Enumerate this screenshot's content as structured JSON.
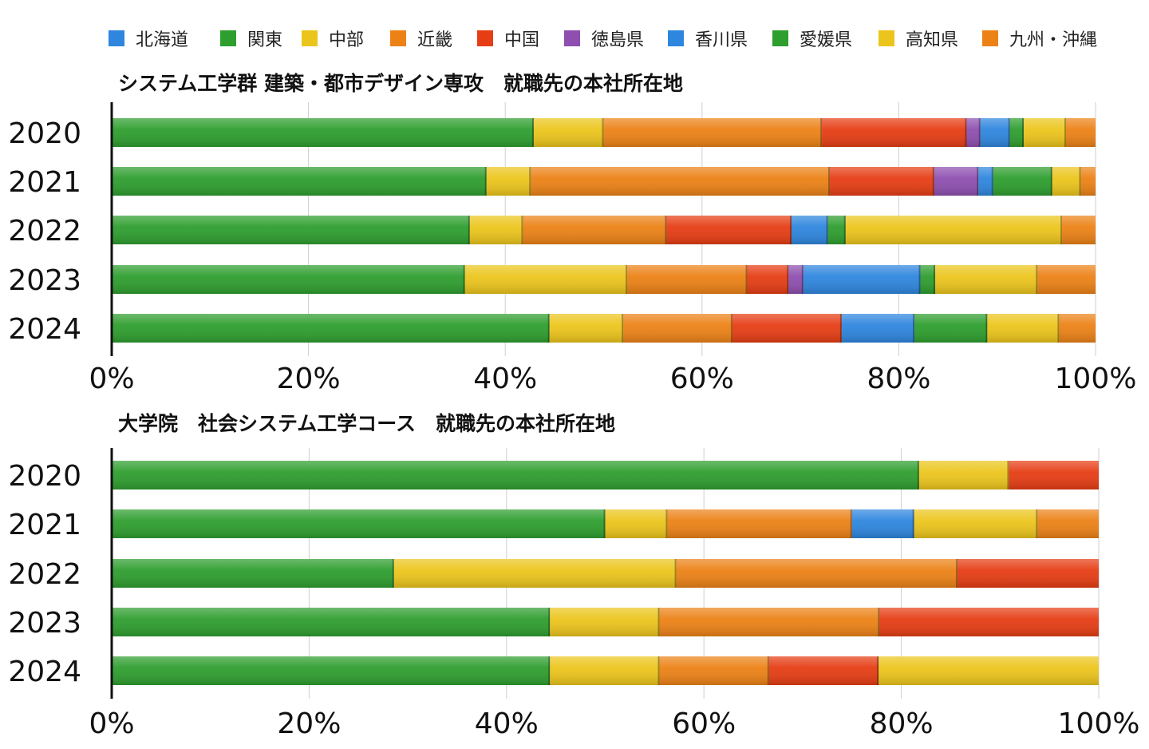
{
  "legend": {
    "items": [
      {
        "label": "北海道",
        "color": "#2e86de"
      },
      {
        "label": "関東",
        "color": "#2e9e2e"
      },
      {
        "label": "中部",
        "color": "#ecc51c"
      },
      {
        "label": "近畿",
        "color": "#ec8216"
      },
      {
        "label": "中国",
        "color": "#e63d14"
      },
      {
        "label": "徳島県",
        "color": "#8e4fb0"
      },
      {
        "label": "香川県",
        "color": "#2e86de"
      },
      {
        "label": "愛媛県",
        "color": "#2e9e2e"
      },
      {
        "label": "高知県",
        "color": "#ecc51c"
      },
      {
        "label": "九州・沖縄",
        "color": "#ec8216"
      }
    ]
  },
  "chart_data": [
    {
      "type": "bar",
      "orientation": "horizontal",
      "stacked": true,
      "title": "システム工学群 建築・都市デザイン専攻　就職先の本社所在地",
      "categories": [
        "2020",
        "2021",
        "2022",
        "2023",
        "2024"
      ],
      "xlim": [
        0,
        100
      ],
      "xticks": [
        "0%",
        "20%",
        "40%",
        "60%",
        "80%",
        "100%"
      ],
      "grid": true,
      "series": [
        {
          "name": "北海道",
          "values": [
            0,
            0,
            0,
            0,
            0
          ]
        },
        {
          "name": "関東",
          "values": [
            42.9,
            38.1,
            36.4,
            35.9,
            44.5
          ]
        },
        {
          "name": "中部",
          "values": [
            7.1,
            4.5,
            5.4,
            16.5,
            7.5
          ]
        },
        {
          "name": "近畿",
          "values": [
            22.2,
            30.4,
            14.6,
            12.2,
            11.1
          ]
        },
        {
          "name": "中国",
          "values": [
            14.7,
            10.6,
            12.7,
            4.2,
            11.1
          ]
        },
        {
          "name": "徳島県",
          "values": [
            1.4,
            4.5,
            0,
            1.5,
            0
          ]
        },
        {
          "name": "香川県",
          "values": [
            3.0,
            1.5,
            3.7,
            11.9,
            7.4
          ]
        },
        {
          "name": "愛媛県",
          "values": [
            1.4,
            6.0,
            1.8,
            1.5,
            7.4
          ]
        },
        {
          "name": "高知県",
          "values": [
            4.3,
            2.9,
            22.0,
            10.4,
            7.3
          ]
        },
        {
          "name": "九州・沖縄",
          "values": [
            3.0,
            1.5,
            3.4,
            5.9,
            3.7
          ]
        }
      ]
    },
    {
      "type": "bar",
      "orientation": "horizontal",
      "stacked": true,
      "title": "大学院　社会システム工学コース　就職先の本社所在地",
      "categories": [
        "2020",
        "2021",
        "2022",
        "2023",
        "2024"
      ],
      "xlim": [
        0,
        100
      ],
      "xticks": [
        "0%",
        "20%",
        "40%",
        "60%",
        "80%",
        "100%"
      ],
      "grid": true,
      "series": [
        {
          "name": "北海道",
          "values": [
            0,
            0,
            0,
            0,
            0
          ]
        },
        {
          "name": "関東",
          "values": [
            81.8,
            50.0,
            28.6,
            44.4,
            44.4
          ]
        },
        {
          "name": "中部",
          "values": [
            9.1,
            6.3,
            28.6,
            11.1,
            11.1
          ]
        },
        {
          "name": "近畿",
          "values": [
            0,
            18.7,
            28.5,
            22.3,
            11.1
          ]
        },
        {
          "name": "中国",
          "values": [
            9.1,
            0,
            14.3,
            22.2,
            11.1
          ]
        },
        {
          "name": "徳島県",
          "values": [
            0,
            0,
            0,
            0,
            0
          ]
        },
        {
          "name": "香川県",
          "values": [
            0,
            6.3,
            0,
            0,
            0
          ]
        },
        {
          "name": "愛媛県",
          "values": [
            0,
            0,
            0,
            0,
            0
          ]
        },
        {
          "name": "高知県",
          "values": [
            0,
            12.5,
            0,
            0,
            22.3
          ]
        },
        {
          "name": "九州・沖縄",
          "values": [
            0,
            6.2,
            0,
            0,
            0
          ]
        }
      ]
    }
  ]
}
